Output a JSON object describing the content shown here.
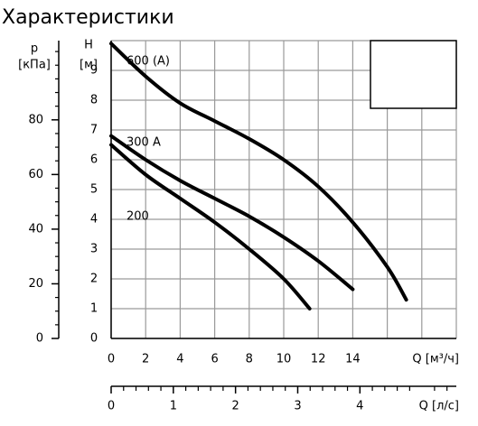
{
  "chart_data": {
    "type": "line",
    "title": "Характеристики",
    "ylabel": "H",
    "yunit": "[м]",
    "xlabel": "Q [м³/ч]",
    "xlim": [
      0,
      20
    ],
    "xticks": [
      0,
      2,
      4,
      6,
      8,
      10,
      12,
      14
    ],
    "xgrid": [
      16,
      18,
      20
    ],
    "ylim": [
      0,
      10
    ],
    "yticks": [
      0,
      1,
      2,
      3,
      4,
      5,
      6,
      7,
      8,
      9
    ],
    "ygrid": [
      10
    ],
    "grid": true,
    "line_color": "#000000",
    "series": [
      {
        "name": "600 (A)",
        "x": [
          0,
          2,
          4,
          6,
          8,
          10,
          12,
          14,
          16,
          17.1
        ],
        "values": [
          9.9,
          8.8,
          7.9,
          7.3,
          6.7,
          6.0,
          5.1,
          3.9,
          2.4,
          1.3
        ]
      },
      {
        "name": "300 A",
        "x": [
          0,
          2,
          4,
          6,
          8,
          10,
          12,
          14
        ],
        "values": [
          6.8,
          6.0,
          5.3,
          4.7,
          4.1,
          3.4,
          2.6,
          1.65
        ]
      },
      {
        "name": "200",
        "x": [
          0,
          2,
          4,
          6,
          8,
          10,
          11.5
        ],
        "values": [
          6.5,
          5.5,
          4.7,
          3.9,
          3.0,
          2.0,
          1.0
        ]
      }
    ],
    "p_axis": {
      "label": "p",
      "unit": "[кПа]",
      "lim": [
        0,
        109
      ],
      "ticks": [
        0,
        20,
        40,
        60,
        80
      ],
      "minor_ticks": [
        5,
        10,
        15,
        25,
        30,
        35,
        45,
        50,
        55,
        65,
        70,
        75,
        85,
        90,
        95,
        100,
        105
      ]
    },
    "q_axis": {
      "label": "Q [л/с]",
      "lim": [
        0,
        5.55
      ],
      "ticks": [
        0,
        1,
        2,
        3,
        4
      ],
      "minor_ticks": [
        0.2,
        0.4,
        0.6,
        0.8,
        1.2,
        1.4,
        1.6,
        1.8,
        2.2,
        2.4,
        2.6,
        2.8,
        3.2,
        3.4,
        3.6,
        3.8,
        4.2,
        4.4,
        4.6,
        4.8,
        5.2,
        5.4
      ]
    }
  }
}
